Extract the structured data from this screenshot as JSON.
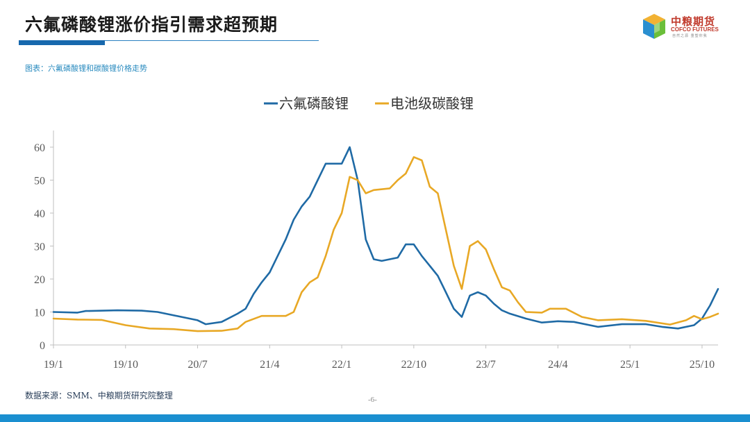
{
  "header": {
    "title": "六氟磷酸锂涨价指引需求超预期",
    "logo_cn": "中粮期货",
    "logo_en": "COFCO FUTURES",
    "logo_slogan": "自然之源 重塑你我"
  },
  "caption": "图表：六氟磷酸锂和碳酸锂价格走势",
  "source": "数据来源：SMM、中粮期货研究院整理",
  "page_number": "-6-",
  "colors": {
    "accent": "#1768ad",
    "footer": "#1a8fd0",
    "series_lipf6": "#1f6aa5",
    "series_li2co3": "#e8a825"
  },
  "chart_data": {
    "type": "line",
    "title": "",
    "xlabel": "",
    "ylabel": "",
    "ylim": [
      0,
      60
    ],
    "yticks": [
      0,
      10,
      20,
      30,
      40,
      50,
      60
    ],
    "x_tick_labels": [
      "19/1",
      "19/10",
      "20/7",
      "21/4",
      "22/1",
      "22/10",
      "23/7",
      "24/4",
      "25/1",
      "25/10"
    ],
    "x_ticks": [
      "2019-01",
      "2019-10",
      "2020-07",
      "2021-04",
      "2022-01",
      "2022-10",
      "2023-07",
      "2024-04",
      "2025-01",
      "2025-10"
    ],
    "x_range": [
      "2019-01",
      "2025-12"
    ],
    "legend_position": "top-center",
    "grid": false,
    "series": [
      {
        "name": "六氟磷酸锂",
        "color": "#1f6aa5",
        "points": [
          [
            "2019-01",
            10
          ],
          [
            "2019-04",
            9.8
          ],
          [
            "2019-05",
            10.3
          ],
          [
            "2019-09",
            10.5
          ],
          [
            "2019-12",
            10.4
          ],
          [
            "2020-02",
            10
          ],
          [
            "2020-05",
            8.5
          ],
          [
            "2020-07",
            7.5
          ],
          [
            "2020-08",
            6.3
          ],
          [
            "2020-10",
            7.0
          ],
          [
            "2020-12",
            9.5
          ],
          [
            "2021-01",
            11
          ],
          [
            "2021-02",
            15.5
          ],
          [
            "2021-03",
            19
          ],
          [
            "2021-04",
            22
          ],
          [
            "2021-05",
            27
          ],
          [
            "2021-06",
            32
          ],
          [
            "2021-07",
            38
          ],
          [
            "2021-08",
            42
          ],
          [
            "2021-09",
            45
          ],
          [
            "2021-10",
            50
          ],
          [
            "2021-11",
            55
          ],
          [
            "2021-12",
            55
          ],
          [
            "2022-01",
            55
          ],
          [
            "2022-02",
            60
          ],
          [
            "2022-03",
            50
          ],
          [
            "2022-04",
            32
          ],
          [
            "2022-05",
            26
          ],
          [
            "2022-06",
            25.5
          ],
          [
            "2022-07",
            26
          ],
          [
            "2022-08",
            26.5
          ],
          [
            "2022-09",
            30.5
          ],
          [
            "2022-10",
            30.5
          ],
          [
            "2022-11",
            27
          ],
          [
            "2022-12",
            24
          ],
          [
            "2023-01",
            21
          ],
          [
            "2023-02",
            16
          ],
          [
            "2023-03",
            11
          ],
          [
            "2023-04",
            8.5
          ],
          [
            "2023-05",
            15
          ],
          [
            "2023-06",
            16
          ],
          [
            "2023-07",
            15
          ],
          [
            "2023-08",
            12.5
          ],
          [
            "2023-09",
            10.5
          ],
          [
            "2023-10",
            9.5
          ],
          [
            "2023-12",
            8
          ],
          [
            "2024-02",
            6.8
          ],
          [
            "2024-04",
            7.2
          ],
          [
            "2024-06",
            7
          ],
          [
            "2024-09",
            5.5
          ],
          [
            "2024-12",
            6.3
          ],
          [
            "2025-03",
            6.3
          ],
          [
            "2025-05",
            5.5
          ],
          [
            "2025-07",
            5
          ],
          [
            "2025-09",
            6
          ],
          [
            "2025-10",
            8
          ],
          [
            "2025-11",
            12
          ],
          [
            "2025-12",
            17
          ]
        ]
      },
      {
        "name": "电池级碳酸锂",
        "color": "#e8a825",
        "points": [
          [
            "2019-01",
            8
          ],
          [
            "2019-04",
            7.7
          ],
          [
            "2019-07",
            7.6
          ],
          [
            "2019-10",
            6
          ],
          [
            "2020-01",
            5
          ],
          [
            "2020-04",
            4.8
          ],
          [
            "2020-07",
            4.2
          ],
          [
            "2020-10",
            4.3
          ],
          [
            "2020-12",
            5
          ],
          [
            "2021-01",
            7
          ],
          [
            "2021-03",
            8.8
          ],
          [
            "2021-06",
            8.8
          ],
          [
            "2021-07",
            10
          ],
          [
            "2021-08",
            16
          ],
          [
            "2021-09",
            19
          ],
          [
            "2021-10",
            20.5
          ],
          [
            "2021-11",
            27
          ],
          [
            "2021-12",
            35
          ],
          [
            "2022-01",
            40
          ],
          [
            "2022-02",
            51
          ],
          [
            "2022-03",
            50
          ],
          [
            "2022-04",
            46
          ],
          [
            "2022-05",
            47
          ],
          [
            "2022-07",
            47.5
          ],
          [
            "2022-08",
            50
          ],
          [
            "2022-09",
            52
          ],
          [
            "2022-10",
            57
          ],
          [
            "2022-11",
            56
          ],
          [
            "2022-12",
            48
          ],
          [
            "2023-01",
            46
          ],
          [
            "2023-02",
            35
          ],
          [
            "2023-03",
            24
          ],
          [
            "2023-04",
            17
          ],
          [
            "2023-05",
            30
          ],
          [
            "2023-06",
            31.5
          ],
          [
            "2023-07",
            29
          ],
          [
            "2023-08",
            23
          ],
          [
            "2023-09",
            17.5
          ],
          [
            "2023-10",
            16.5
          ],
          [
            "2023-11",
            13
          ],
          [
            "2023-12",
            10
          ],
          [
            "2024-02",
            9.8
          ],
          [
            "2024-03",
            11
          ],
          [
            "2024-05",
            11
          ],
          [
            "2024-07",
            8.5
          ],
          [
            "2024-09",
            7.5
          ],
          [
            "2024-12",
            7.8
          ],
          [
            "2025-03",
            7.3
          ],
          [
            "2025-06",
            6.2
          ],
          [
            "2025-08",
            7.5
          ],
          [
            "2025-09",
            8.8
          ],
          [
            "2025-10",
            7.8
          ],
          [
            "2025-11",
            8.5
          ],
          [
            "2025-12",
            9.5
          ]
        ]
      }
    ]
  }
}
